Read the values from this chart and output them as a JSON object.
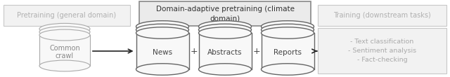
{
  "fig_width": 6.4,
  "fig_height": 1.1,
  "dpi": 100,
  "bg_color": "#ffffff",
  "box_left_text": "Pretraining (general domain)",
  "box_left_color": "#f2f2f2",
  "box_left_text_color": "#b0b0b0",
  "box_left_border": "#c8c8c8",
  "box_mid_text": "Domain-adaptive pretraining (climate\ndomain)",
  "box_mid_color": "#ebebeb",
  "box_mid_text_color": "#333333",
  "box_mid_border": "#888888",
  "box_right_text": "Training (downstream tasks)",
  "box_right_color": "#f2f2f2",
  "box_right_text_color": "#b0b0b0",
  "box_right_border": "#c8c8c8",
  "cylinder_labels": [
    "News",
    "Abstracts",
    "Reports"
  ],
  "cylinder_color": "#f8f8f8",
  "cylinder_edge": "#666666",
  "cylinder_text_color": "#444444",
  "common_crawl_label": "Common\ncrawl",
  "common_crawl_color": "#f8f8f8",
  "common_crawl_edge": "#aaaaaa",
  "common_crawl_text_color": "#888888",
  "plus_color": "#444444",
  "arrow_color": "#222222",
  "right_list": [
    "- Text classification",
    "- Sentiment analysis",
    "- Fact-checking"
  ],
  "right_list_color": "#aaaaaa",
  "right_list_box_color": "#f2f2f2",
  "right_list_box_border": "#c8c8c8"
}
